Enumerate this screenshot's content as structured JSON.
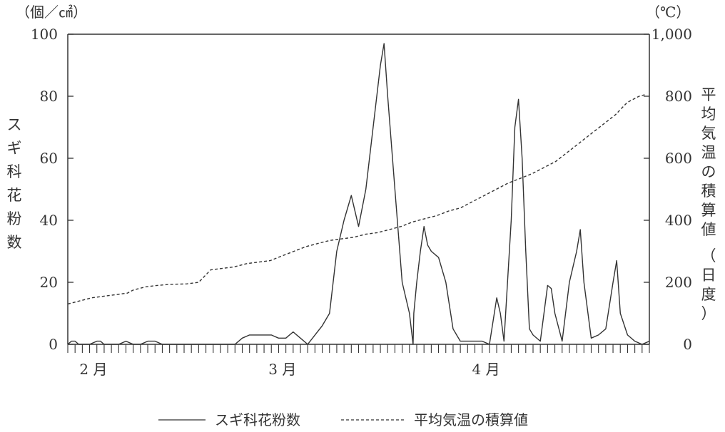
{
  "chart_data": {
    "type": "line",
    "left_unit": "（個／㎠）",
    "right_unit": "（℃）",
    "y_left_label": "スギ科花粉数",
    "y_right_label": "平均気温の積算値",
    "y_right_label_suffix": "（日度）",
    "ylim_left": [
      0,
      100
    ],
    "ylim_right": [
      0,
      1000
    ],
    "y_left_ticks": [
      "0",
      "20",
      "40",
      "60",
      "80",
      "100"
    ],
    "y_right_ticks": [
      "0",
      "200",
      "400",
      "600",
      "800",
      "1,000"
    ],
    "x_day_range": [
      0,
      80
    ],
    "months": [
      {
        "label": "2 月",
        "day": 2
      },
      {
        "label": "3 月",
        "day": 28
      },
      {
        "label": "4 月",
        "day": 56
      }
    ],
    "legend_position": "bottom",
    "series": [
      {
        "name": "スギ科花粉数",
        "axis": "left",
        "style": "solid",
        "points": [
          [
            0,
            0
          ],
          [
            0.5,
            1
          ],
          [
            1,
            1
          ],
          [
            1.5,
            0
          ],
          [
            2,
            0
          ],
          [
            3,
            0
          ],
          [
            4,
            1
          ],
          [
            4.5,
            1
          ],
          [
            5,
            0
          ],
          [
            6,
            0
          ],
          [
            7,
            0
          ],
          [
            8,
            1
          ],
          [
            9,
            0
          ],
          [
            10,
            0
          ],
          [
            11,
            1
          ],
          [
            12,
            1
          ],
          [
            13,
            0
          ],
          [
            14,
            0
          ],
          [
            15,
            0
          ],
          [
            16,
            0
          ],
          [
            17,
            0
          ],
          [
            18,
            0
          ],
          [
            19,
            0
          ],
          [
            20,
            0
          ],
          [
            21,
            0
          ],
          [
            22,
            0
          ],
          [
            23,
            0
          ],
          [
            24,
            2
          ],
          [
            25,
            3
          ],
          [
            26,
            3
          ],
          [
            27,
            3
          ],
          [
            28,
            3
          ],
          [
            29,
            2
          ],
          [
            30,
            2
          ],
          [
            31,
            4
          ],
          [
            32,
            2
          ],
          [
            33,
            0
          ],
          [
            34,
            3
          ],
          [
            35,
            6
          ],
          [
            36,
            10
          ],
          [
            37,
            30
          ],
          [
            38,
            40
          ],
          [
            39,
            48
          ],
          [
            40,
            38
          ],
          [
            41,
            50
          ],
          [
            42,
            70
          ],
          [
            43,
            90
          ],
          [
            43.5,
            97
          ],
          [
            44,
            80
          ],
          [
            45,
            50
          ],
          [
            46,
            20
          ],
          [
            47,
            10
          ],
          [
            47.5,
            0
          ],
          [
            47.6,
            10
          ],
          [
            48,
            20
          ],
          [
            48.5,
            30
          ],
          [
            49,
            38
          ],
          [
            49.5,
            32
          ],
          [
            50,
            30
          ],
          [
            51,
            28
          ],
          [
            52,
            20
          ],
          [
            53,
            5
          ],
          [
            54,
            1
          ],
          [
            55,
            1
          ],
          [
            56,
            1
          ],
          [
            57,
            1
          ],
          [
            58,
            0
          ],
          [
            59,
            15
          ],
          [
            59.5,
            10
          ],
          [
            60,
            1
          ],
          [
            61,
            40
          ],
          [
            61.5,
            70
          ],
          [
            62,
            79
          ],
          [
            62.5,
            60
          ],
          [
            63,
            30
          ],
          [
            63.5,
            5
          ],
          [
            64,
            3
          ],
          [
            65,
            1
          ],
          [
            66,
            19
          ],
          [
            66.5,
            18
          ],
          [
            67,
            10
          ],
          [
            68,
            1
          ],
          [
            69,
            20
          ],
          [
            70,
            30
          ],
          [
            70.5,
            37
          ],
          [
            71,
            20
          ],
          [
            72,
            2
          ],
          [
            73,
            3
          ],
          [
            74,
            5
          ],
          [
            75,
            20
          ],
          [
            75.5,
            27
          ],
          [
            76,
            10
          ],
          [
            77,
            3
          ],
          [
            78,
            1
          ],
          [
            79,
            0
          ],
          [
            80,
            1
          ]
        ]
      },
      {
        "name": "平均気温の積算値",
        "axis": "right",
        "style": "dashed",
        "points": [
          [
            0,
            130
          ],
          [
            2,
            140
          ],
          [
            4,
            150
          ],
          [
            6,
            155
          ],
          [
            8,
            160
          ],
          [
            10,
            165
          ],
          [
            11,
            175
          ],
          [
            12,
            180
          ],
          [
            13,
            185
          ],
          [
            15,
            190
          ],
          [
            17,
            193
          ],
          [
            20,
            195
          ],
          [
            22,
            200
          ],
          [
            23,
            220
          ],
          [
            24,
            240
          ],
          [
            26,
            245
          ],
          [
            28,
            250
          ],
          [
            30,
            260
          ],
          [
            32,
            265
          ],
          [
            34,
            270
          ],
          [
            36,
            285
          ],
          [
            38,
            300
          ],
          [
            40,
            315
          ],
          [
            42,
            325
          ],
          [
            44,
            335
          ],
          [
            46,
            340
          ],
          [
            48,
            345
          ],
          [
            50,
            355
          ],
          [
            52,
            360
          ],
          [
            54,
            370
          ],
          [
            56,
            380
          ],
          [
            58,
            395
          ],
          [
            60,
            405
          ],
          [
            62,
            415
          ],
          [
            64,
            430
          ],
          [
            66,
            440
          ],
          [
            68,
            460
          ],
          [
            70,
            480
          ],
          [
            72,
            500
          ],
          [
            74,
            520
          ],
          [
            76,
            535
          ],
          [
            78,
            550
          ],
          [
            80,
            570
          ],
          [
            82,
            590
          ],
          [
            84,
            620
          ],
          [
            86,
            650
          ],
          [
            88,
            680
          ],
          [
            90,
            710
          ],
          [
            92,
            740
          ],
          [
            94,
            780
          ],
          [
            96,
            800
          ],
          [
            97,
            805
          ]
        ]
      }
    ]
  }
}
